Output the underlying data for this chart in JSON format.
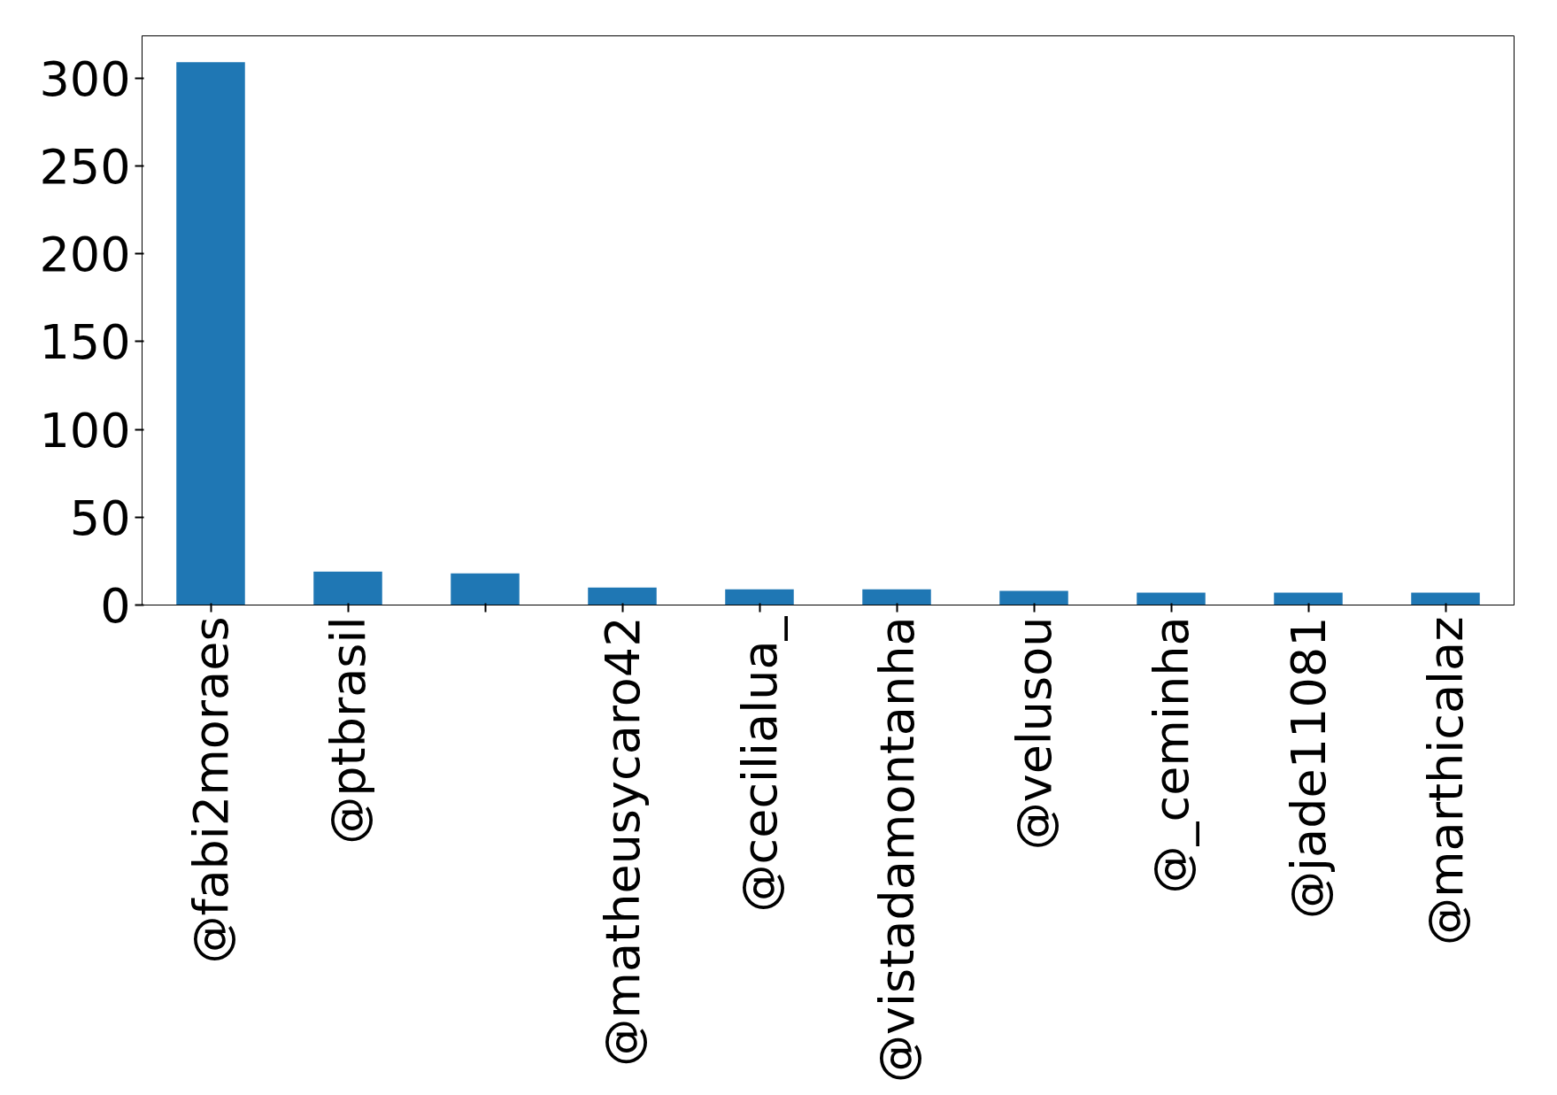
{
  "chart_data": {
    "type": "bar",
    "categories": [
      "@fabi2moraes",
      "@ptbrasil",
      null,
      "@matheusycaro42",
      "@cecilialua_",
      "@vistadamontanha",
      "@velusou",
      "@_ceminha",
      "@jade11081",
      "@marthicalaz"
    ],
    "values": [
      309,
      19,
      18,
      10,
      9,
      9,
      8,
      7,
      7,
      7
    ],
    "color": "#1f77b4",
    "ylim": [
      0,
      324
    ],
    "yticks": [
      0,
      50,
      100,
      150,
      200,
      250,
      300
    ],
    "grid": false
  }
}
